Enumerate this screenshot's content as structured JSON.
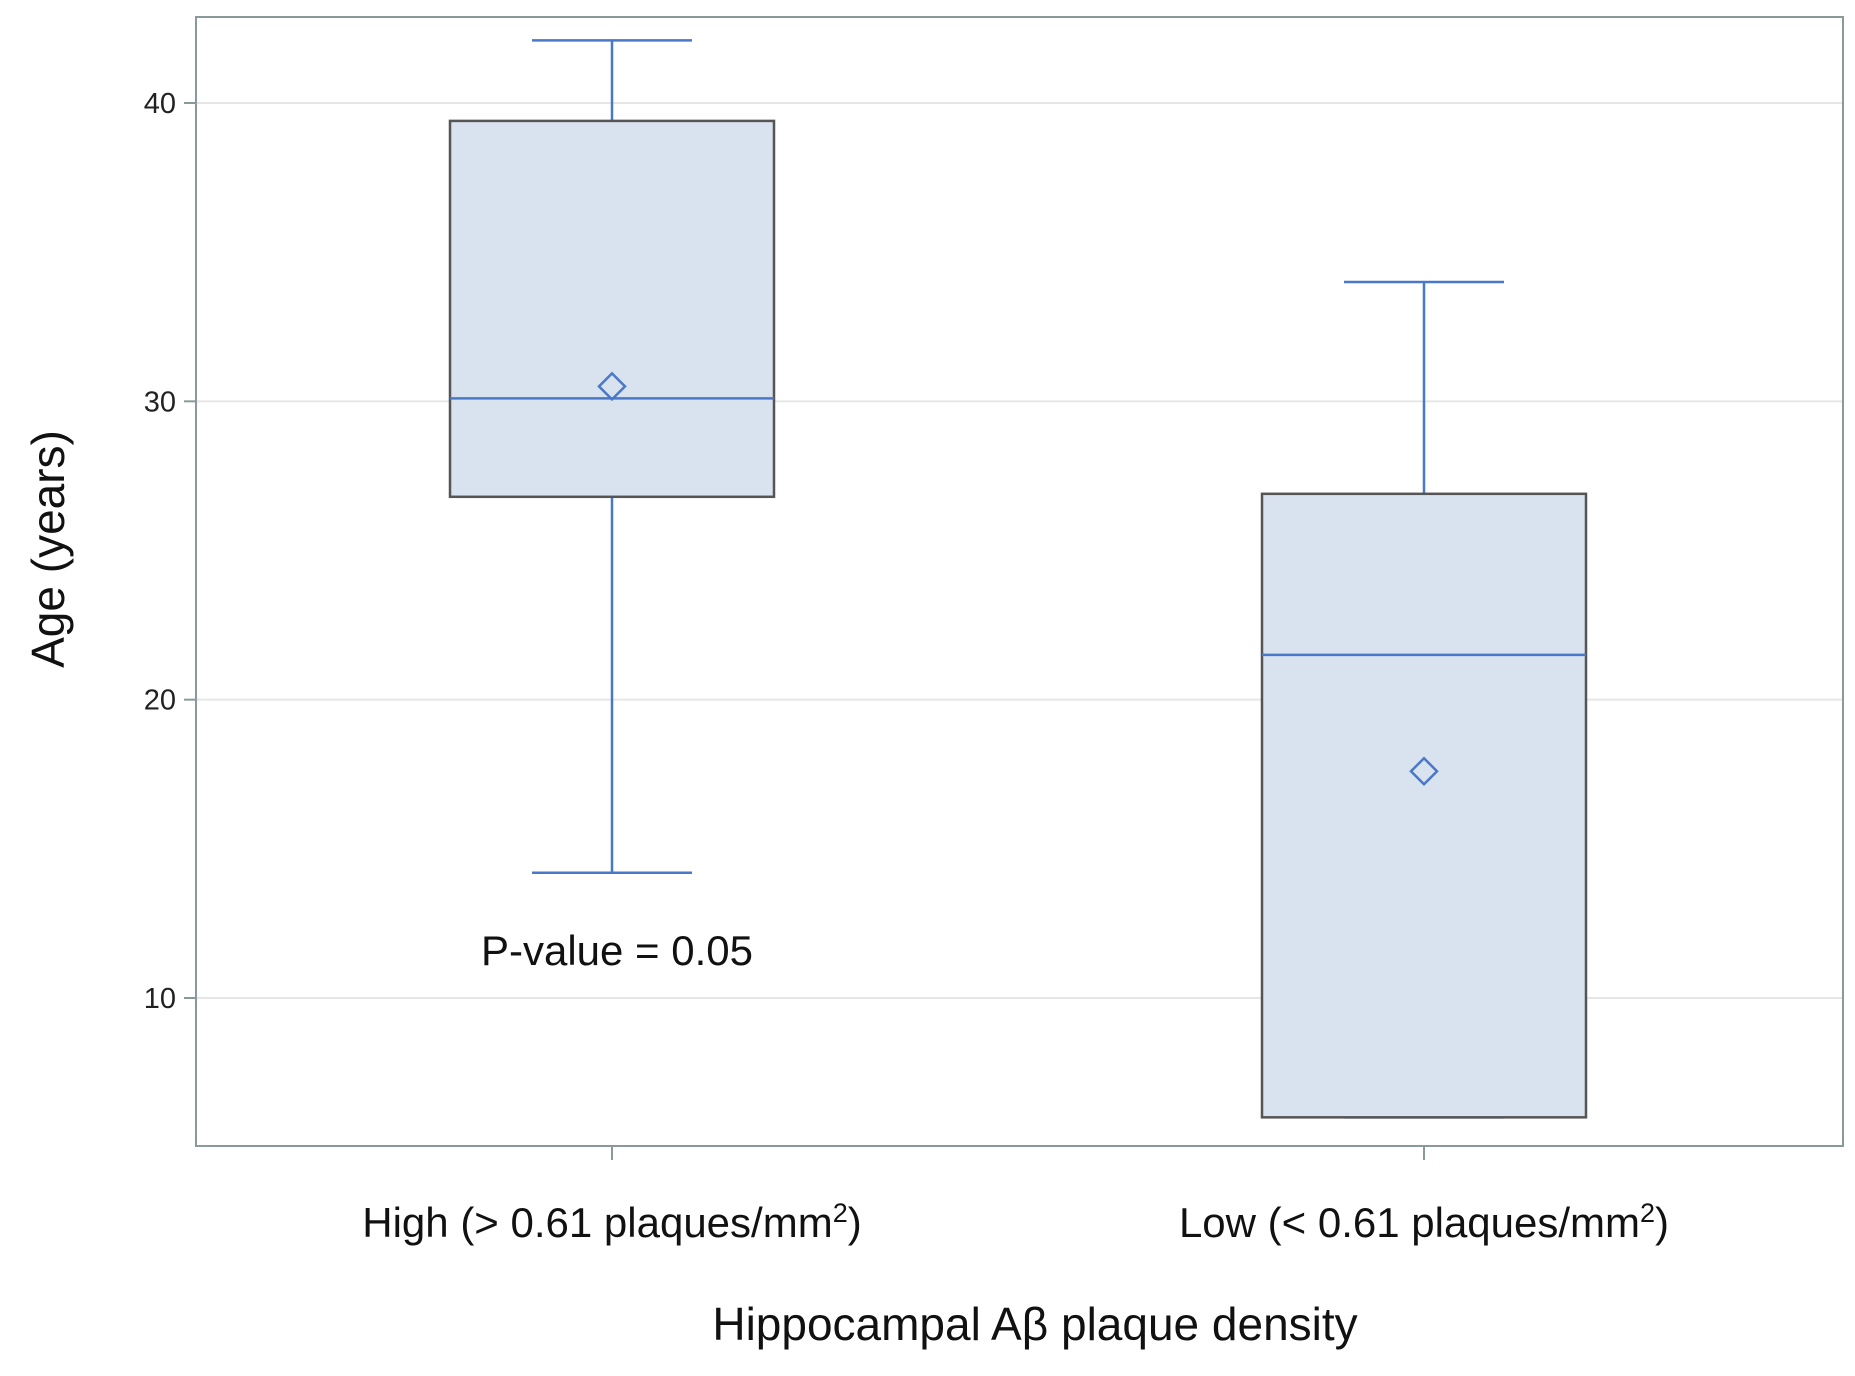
{
  "chart_data": {
    "type": "box",
    "xlabel": "Hippocampal Aβ plaque density",
    "ylabel": "Age (years)",
    "ylim": [
      5,
      43
    ],
    "yticks": [
      10,
      20,
      30,
      40
    ],
    "grid": true,
    "categories": [
      {
        "label": "High (> 0.61 plaques/mm",
        "sup": "2",
        "suffix": ")"
      },
      {
        "label": "Low (< 0.61 plaques/mm",
        "sup": "2",
        "suffix": ")"
      }
    ],
    "boxes": [
      {
        "whisker_low": 14.2,
        "q1": 26.8,
        "median": 30.1,
        "q3": 39.4,
        "whisker_high": 42.1,
        "mean": 30.5
      },
      {
        "whisker_low": 6.0,
        "q1": 6.0,
        "median": 21.5,
        "q3": 26.9,
        "whisker_high": 34.0,
        "mean": 17.6
      }
    ],
    "annotation": "P-value = 0.05",
    "colors": {
      "box_fill": "#d9e2ef",
      "box_edge": "#555555",
      "line": "#4a78c8",
      "grid": "#e6e6e6",
      "frame": "#8a9a9a"
    }
  }
}
